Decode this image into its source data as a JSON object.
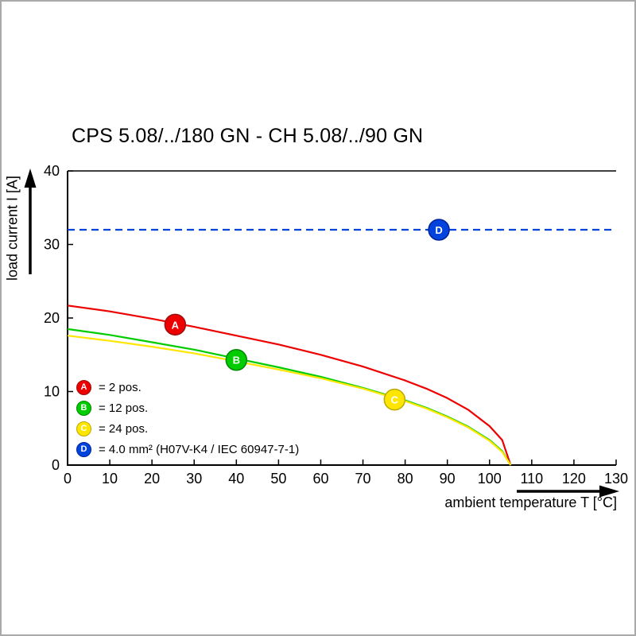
{
  "chart_data": {
    "type": "line",
    "title": "CPS 5.08/../180 GN - CH 5.08/../90 GN",
    "xlabel": "ambient temperature T [°C]",
    "ylabel": "load current I [A]",
    "xlim": [
      0,
      130
    ],
    "ylim": [
      0,
      40
    ],
    "x_ticks": [
      0,
      10,
      20,
      30,
      40,
      50,
      60,
      70,
      80,
      90,
      100,
      110,
      120,
      130
    ],
    "y_ticks": [
      0,
      10,
      20,
      30,
      40
    ],
    "grid": false,
    "legend_position": "inside bottom-left",
    "series": [
      {
        "name": "A",
        "label": "= 2 pos.",
        "color": "#ee0000",
        "edge": "#991111",
        "marker": [
          25.5,
          19.1
        ],
        "points": [
          [
            0,
            21.7
          ],
          [
            10,
            20.9
          ],
          [
            20,
            19.9
          ],
          [
            30,
            18.8
          ],
          [
            40,
            17.6
          ],
          [
            50,
            16.4
          ],
          [
            60,
            15
          ],
          [
            70,
            13.4
          ],
          [
            80,
            11.5
          ],
          [
            85,
            10.4
          ],
          [
            90,
            9.1
          ],
          [
            95,
            7.5
          ],
          [
            100,
            5.3
          ],
          [
            103,
            3.4
          ],
          [
            105,
            0
          ]
        ]
      },
      {
        "name": "B",
        "label": "= 12 pos.",
        "color": "#00cc00",
        "edge": "#008800",
        "marker": [
          40,
          14.3
        ],
        "points": [
          [
            0,
            18.5
          ],
          [
            10,
            17.7
          ],
          [
            20,
            16.7
          ],
          [
            30,
            15.7
          ],
          [
            40,
            14.5
          ],
          [
            50,
            13.3
          ],
          [
            60,
            12
          ],
          [
            70,
            10.5
          ],
          [
            80,
            8.8
          ],
          [
            85,
            7.8
          ],
          [
            90,
            6.6
          ],
          [
            95,
            5.2
          ],
          [
            100,
            3.4
          ],
          [
            103,
            1.9
          ],
          [
            105,
            0
          ]
        ]
      },
      {
        "name": "C",
        "label": "= 24 pos.",
        "color": "#ffe600",
        "edge": "#b8a800",
        "marker": [
          77.5,
          8.9
        ],
        "points": [
          [
            0,
            17.6
          ],
          [
            10,
            16.9
          ],
          [
            20,
            16.1
          ],
          [
            30,
            15.2
          ],
          [
            40,
            14.1
          ],
          [
            50,
            13
          ],
          [
            60,
            11.8
          ],
          [
            70,
            10.4
          ],
          [
            80,
            8.7
          ],
          [
            85,
            7.7
          ],
          [
            90,
            6.5
          ],
          [
            95,
            5.1
          ],
          [
            100,
            3.3
          ],
          [
            103,
            1.8
          ],
          [
            105,
            0
          ]
        ]
      },
      {
        "name": "D",
        "label": "= 4.0 mm² (H07V-K4 / IEC 60947-7-1)",
        "color": "#0044dd",
        "edge": "#002299",
        "dash": true,
        "marker": [
          88,
          32
        ],
        "points": [
          [
            0,
            32
          ],
          [
            130,
            32
          ]
        ]
      }
    ]
  }
}
